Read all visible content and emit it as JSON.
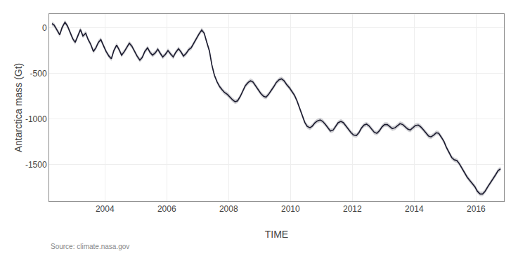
{
  "chart_data": {
    "type": "line",
    "xlabel": "TIME",
    "ylabel": "Antarctica mass (Gt)",
    "annotations": [
      "Source: climate.nasa.gov"
    ],
    "xlim": [
      2002.2,
      2016.9
    ],
    "ylim": [
      -1900,
      150
    ],
    "xticks": [
      2004,
      2006,
      2008,
      2010,
      2012,
      2014,
      2016
    ],
    "yticks": [
      0,
      -500,
      -1000,
      -1500
    ],
    "grid": true,
    "x": [
      2002.29,
      2002.36,
      2002.46,
      2002.54,
      2002.62,
      2002.71,
      2002.79,
      2002.87,
      2002.96,
      2003.04,
      2003.13,
      2003.21,
      2003.29,
      2003.38,
      2003.46,
      2003.54,
      2003.63,
      2003.71,
      2003.79,
      2003.87,
      2003.96,
      2004.04,
      2004.13,
      2004.21,
      2004.29,
      2004.38,
      2004.46,
      2004.54,
      2004.63,
      2004.71,
      2004.79,
      2004.87,
      2004.96,
      2005.04,
      2005.13,
      2005.21,
      2005.29,
      2005.38,
      2005.46,
      2005.54,
      2005.63,
      2005.71,
      2005.79,
      2005.87,
      2005.96,
      2006.04,
      2006.13,
      2006.21,
      2006.29,
      2006.38,
      2006.46,
      2006.54,
      2006.63,
      2006.71,
      2006.79,
      2006.87,
      2006.96,
      2007.04,
      2007.13,
      2007.21,
      2007.29,
      2007.38,
      2007.46,
      2007.54,
      2007.63,
      2007.71,
      2007.79,
      2007.87,
      2007.96,
      2008.04,
      2008.13,
      2008.21,
      2008.29,
      2008.38,
      2008.46,
      2008.54,
      2008.63,
      2008.71,
      2008.79,
      2008.87,
      2008.96,
      2009.04,
      2009.13,
      2009.21,
      2009.29,
      2009.38,
      2009.46,
      2009.54,
      2009.63,
      2009.71,
      2009.79,
      2009.87,
      2009.96,
      2010.04,
      2010.13,
      2010.21,
      2010.29,
      2010.38,
      2010.46,
      2010.54,
      2010.63,
      2010.71,
      2010.79,
      2010.87,
      2010.96,
      2011.04,
      2011.13,
      2011.21,
      2011.29,
      2011.38,
      2011.46,
      2011.54,
      2011.63,
      2011.71,
      2011.79,
      2011.87,
      2011.96,
      2012.04,
      2012.13,
      2012.21,
      2012.29,
      2012.38,
      2012.46,
      2012.54,
      2012.63,
      2012.71,
      2012.79,
      2012.87,
      2012.96,
      2013.04,
      2013.13,
      2013.21,
      2013.29,
      2013.38,
      2013.46,
      2013.54,
      2013.63,
      2013.71,
      2013.79,
      2013.87,
      2013.96,
      2014.04,
      2014.13,
      2014.21,
      2014.29,
      2014.38,
      2014.46,
      2014.54,
      2014.63,
      2014.71,
      2014.79,
      2014.87,
      2014.96,
      2015.04,
      2015.13,
      2015.21,
      2015.29,
      2015.38,
      2015.46,
      2015.54,
      2015.63,
      2015.71,
      2015.79,
      2015.87,
      2015.96,
      2016.04,
      2016.13,
      2016.21,
      2016.29,
      2016.38,
      2016.46,
      2016.54,
      2016.63,
      2016.71,
      2016.79
    ],
    "series": [
      {
        "color": "#1a1a2e",
        "uncertainty": 25,
        "values": [
          45,
          28,
          -30,
          -77,
          5,
          60,
          20,
          -45,
          -120,
          -160,
          -80,
          -20,
          -90,
          -60,
          -130,
          -180,
          -260,
          -220,
          -160,
          -130,
          -200,
          -260,
          -310,
          -340,
          -250,
          -190,
          -240,
          -300,
          -260,
          -210,
          -170,
          -200,
          -265,
          -310,
          -355,
          -325,
          -260,
          -220,
          -270,
          -300,
          -275,
          -235,
          -280,
          -320,
          -290,
          -250,
          -290,
          -320,
          -270,
          -230,
          -265,
          -310,
          -280,
          -240,
          -220,
          -170,
          -120,
          -70,
          -25,
          -60,
          -155,
          -255,
          -410,
          -520,
          -595,
          -645,
          -680,
          -710,
          -730,
          -760,
          -790,
          -810,
          -800,
          -750,
          -690,
          -635,
          -600,
          -580,
          -595,
          -635,
          -680,
          -720,
          -750,
          -760,
          -730,
          -690,
          -645,
          -600,
          -570,
          -560,
          -580,
          -620,
          -655,
          -695,
          -740,
          -800,
          -870,
          -960,
          -1035,
          -1080,
          -1095,
          -1075,
          -1040,
          -1020,
          -1010,
          -1025,
          -1060,
          -1100,
          -1130,
          -1120,
          -1080,
          -1040,
          -1025,
          -1040,
          -1075,
          -1115,
          -1150,
          -1175,
          -1180,
          -1150,
          -1100,
          -1065,
          -1055,
          -1075,
          -1110,
          -1145,
          -1155,
          -1130,
          -1085,
          -1060,
          -1060,
          -1085,
          -1105,
          -1095,
          -1070,
          -1050,
          -1060,
          -1085,
          -1110,
          -1120,
          -1095,
          -1070,
          -1065,
          -1085,
          -1115,
          -1155,
          -1185,
          -1195,
          -1175,
          -1150,
          -1155,
          -1195,
          -1245,
          -1310,
          -1375,
          -1420,
          -1445,
          -1455,
          -1490,
          -1540,
          -1595,
          -1635,
          -1670,
          -1700,
          -1740,
          -1790,
          -1820,
          -1820,
          -1790,
          -1740,
          -1700,
          -1665,
          -1610,
          -1565,
          -1545
        ]
      }
    ]
  }
}
